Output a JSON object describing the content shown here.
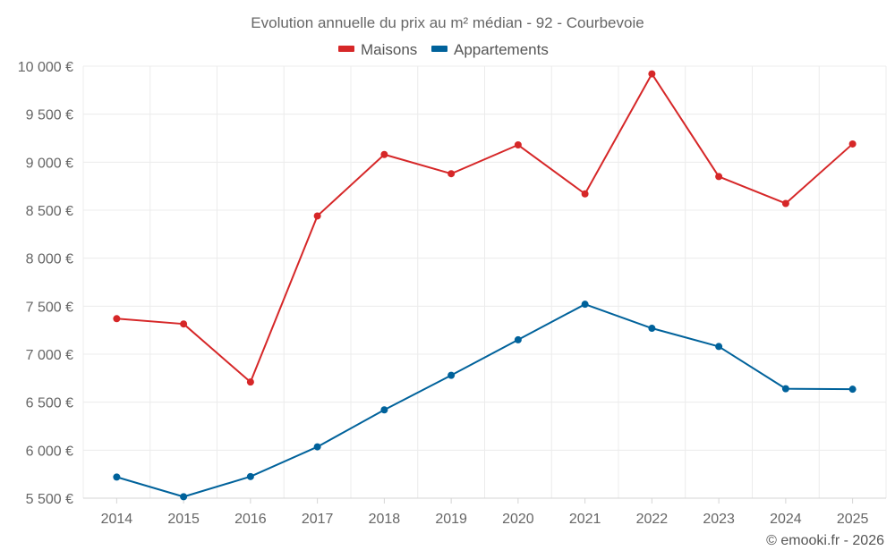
{
  "chart_data": {
    "type": "line",
    "title": "Evolution annuelle du prix au m² médian - 92 - Courbevoie",
    "categories": [
      "2014",
      "2015",
      "2016",
      "2017",
      "2018",
      "2019",
      "2020",
      "2021",
      "2022",
      "2023",
      "2024",
      "2025"
    ],
    "series": [
      {
        "name": "Maisons",
        "color": "#d62728",
        "values": [
          7370,
          7315,
          6710,
          8440,
          9080,
          8880,
          9180,
          8670,
          9920,
          8850,
          8570,
          9190
        ]
      },
      {
        "name": "Appartements",
        "color": "#00629b",
        "values": [
          5720,
          5515,
          5725,
          6035,
          6420,
          6780,
          7150,
          7520,
          7270,
          7080,
          6640,
          6635
        ]
      }
    ],
    "ylim": [
      5500,
      10000
    ],
    "yticks": [
      5500,
      6000,
      6500,
      7000,
      7500,
      8000,
      8500,
      9000,
      9500,
      10000
    ],
    "ytick_labels": [
      "5 500 €",
      "6 000 €",
      "6 500 €",
      "7 000 €",
      "7 500 €",
      "8 000 €",
      "8 500 €",
      "9 000 €",
      "9 500 €",
      "10 000 €"
    ],
    "xlabel": "",
    "ylabel": "",
    "grid": true,
    "legend_position": "top-center"
  },
  "credit": "© emooki.fr - 2026"
}
